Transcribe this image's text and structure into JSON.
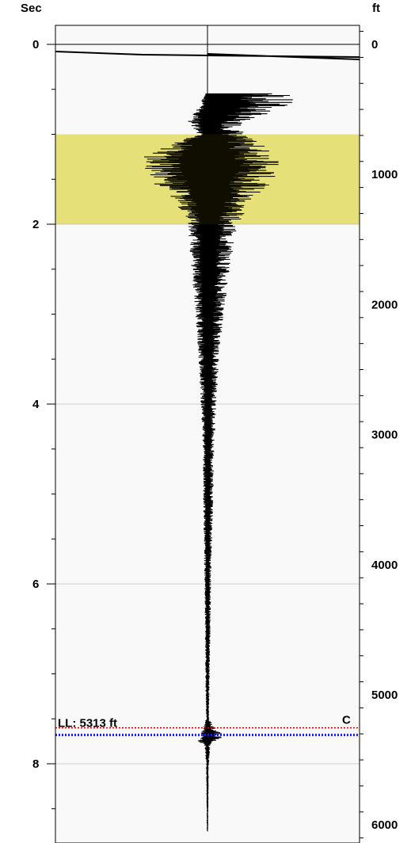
{
  "chart_data": {
    "type": "line",
    "title": "",
    "left_axis": {
      "label": "Sec",
      "ticks": [
        "0",
        "2",
        "4",
        "6",
        "8"
      ],
      "range": [
        -0.2,
        8.75
      ]
    },
    "right_axis": {
      "label": "ft",
      "ticks": [
        "0",
        "1000",
        "2000",
        "3000",
        "4000",
        "5000",
        "6000"
      ],
      "range": [
        -200,
        6250
      ]
    },
    "highlight_band": {
      "from": 1.0,
      "to": 2.0,
      "color": "#f5f08a"
    },
    "gridlines": [
      0,
      2,
      4,
      6,
      8
    ],
    "markers": [
      {
        "label": "C",
        "value": 7.6,
        "color": "#e00000",
        "style": "dotted"
      },
      {
        "label": "LL: 5313 ft",
        "value": 7.68,
        "color": "#1a1aff",
        "style": "dotted"
      }
    ],
    "series": [
      {
        "trace_envelope": {
          "time": [
            0.55,
            0.7,
            0.85,
            1.0,
            1.25,
            1.5,
            1.75,
            2.0,
            2.5,
            3.0,
            3.5,
            4.0,
            4.5,
            5.0,
            5.5,
            6.0,
            6.5,
            7.0,
            7.5,
            7.6,
            7.7,
            7.75,
            7.8,
            8.0,
            8.5,
            8.75
          ],
          "left_amplitude": [
            -0.02,
            -0.06,
            -0.14,
            -0.08,
            -0.45,
            -0.4,
            -0.22,
            -0.13,
            -0.11,
            -0.08,
            -0.06,
            -0.045,
            -0.03,
            -0.03,
            -0.025,
            -0.02,
            -0.017,
            -0.015,
            -0.01,
            -0.03,
            -0.05,
            -0.07,
            -0.02,
            -0.01,
            -0.006,
            -0.005
          ],
          "right_amplitude": [
            0.6,
            0.55,
            0.25,
            0.25,
            0.5,
            0.45,
            0.3,
            0.2,
            0.15,
            0.11,
            0.08,
            0.06,
            0.045,
            0.04,
            0.032,
            0.025,
            0.02,
            0.015,
            0.01,
            0.05,
            0.12,
            0.04,
            0.02,
            0.01,
            0.006,
            0.005
          ]
        }
      }
    ]
  }
}
